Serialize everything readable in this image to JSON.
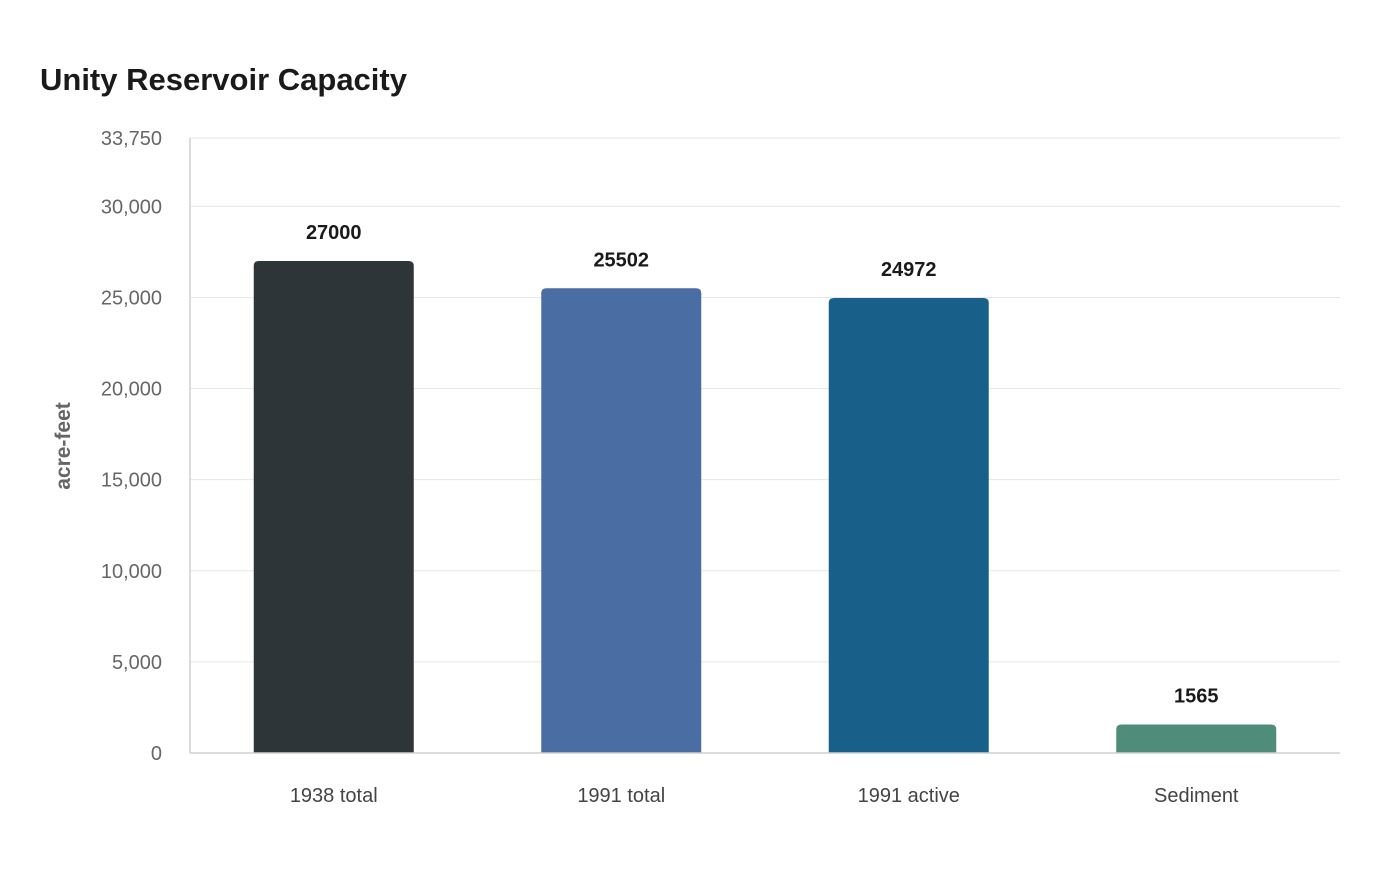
{
  "chart_data": {
    "type": "bar",
    "title": "Unity Reservoir Capacity",
    "xlabel": "",
    "ylabel": "acre-feet",
    "categories": [
      "1938 total",
      "1991 total",
      "1991 active",
      "Sediment"
    ],
    "values": [
      27000,
      25502,
      24972,
      1565
    ],
    "value_labels": [
      "27000",
      "25502",
      "24972",
      "1565"
    ],
    "colors": [
      "#2d3538",
      "#4a6da3",
      "#186089",
      "#4f8d7a"
    ],
    "ylim": [
      0,
      33750
    ],
    "yticks": [
      0,
      5000,
      10000,
      15000,
      20000,
      25000,
      30000,
      33750
    ],
    "ytick_labels": [
      "0",
      "5,000",
      "10,000",
      "15,000",
      "20,000",
      "25,000",
      "30,000",
      "33,750"
    ],
    "grid": true,
    "legend": "none"
  }
}
